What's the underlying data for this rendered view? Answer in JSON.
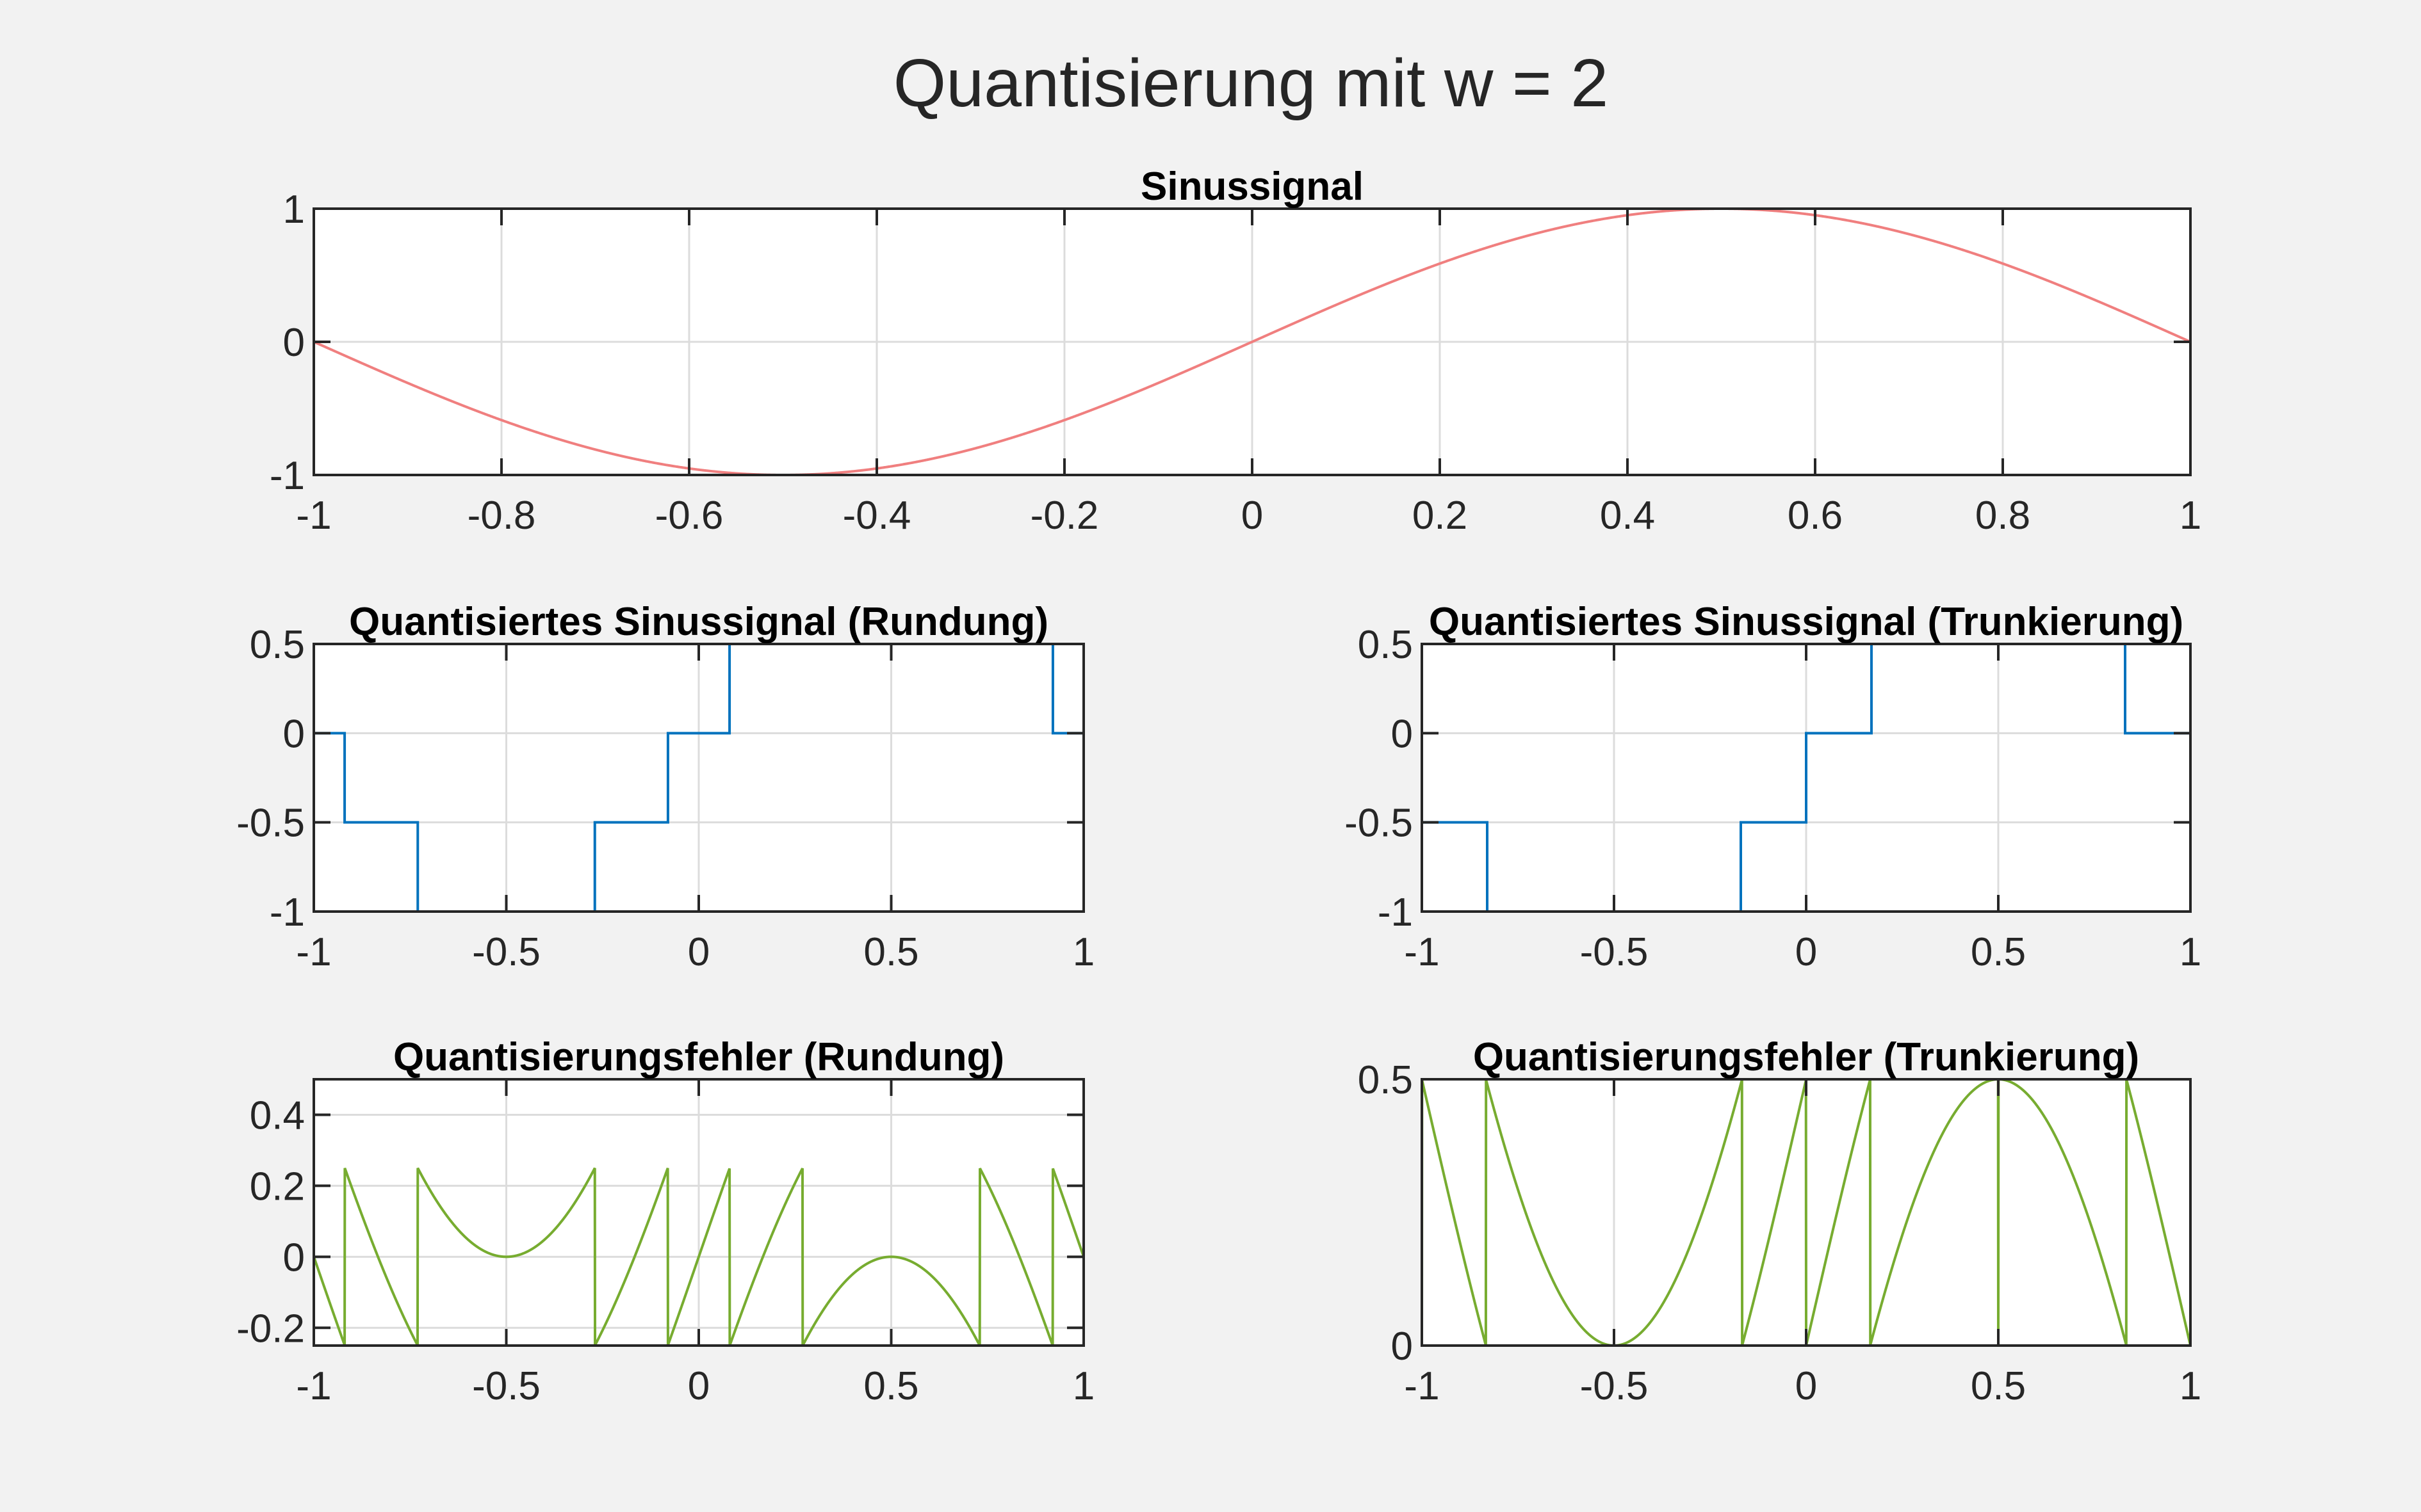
{
  "figure": {
    "title": "Quantisierung mit w = 2",
    "background": "#f2f2f2"
  },
  "chart_data": [
    {
      "id": "sinus",
      "type": "line",
      "title": "Sinussignal",
      "xlabel": "",
      "ylabel": "",
      "xlim": [
        -1,
        1
      ],
      "ylim": [
        -1,
        1
      ],
      "xticks": [
        -1,
        -0.8,
        -0.6,
        -0.4,
        -0.2,
        0,
        0.2,
        0.4,
        0.6,
        0.8,
        1
      ],
      "xticklabels": [
        "-1",
        "-0.8",
        "-0.6",
        "-0.4",
        "-0.2",
        "0",
        "0.2",
        "0.4",
        "0.6",
        "0.8",
        "1"
      ],
      "yticks": [
        -1,
        0,
        1
      ],
      "yticklabels": [
        "-1",
        "0",
        "1"
      ],
      "grid": true,
      "color": "#f07f7f",
      "series": [
        {
          "function": "sin(pi*x)",
          "x_range": [
            -1,
            1
          ]
        }
      ]
    },
    {
      "id": "quant_rund",
      "type": "line",
      "title": "Quantisiertes Sinussignal (Rundung)",
      "xlabel": "",
      "ylabel": "",
      "xlim": [
        -1,
        1
      ],
      "ylim": [
        -1,
        0.5
      ],
      "xticks": [
        -1,
        -0.5,
        0,
        0.5,
        1
      ],
      "xticklabels": [
        "-1",
        "-0.5",
        "0",
        "0.5",
        "1"
      ],
      "yticks": [
        -1,
        -0.5,
        0,
        0.5
      ],
      "yticklabels": [
        "-1",
        "-0.5",
        "0",
        "0.5"
      ],
      "grid": true,
      "color": "#0072bd",
      "series": [
        {
          "x": [
            -1,
            -0.92,
            -0.92,
            -0.73,
            -0.73,
            -0.27,
            -0.27,
            -0.08,
            -0.08,
            0.08,
            0.08,
            0.92,
            0.92,
            1
          ],
          "y": [
            0,
            0,
            -0.5,
            -0.5,
            -1,
            -1,
            -0.5,
            -0.5,
            0,
            0,
            0.5,
            0.5,
            0,
            0
          ]
        }
      ]
    },
    {
      "id": "quant_trunk",
      "type": "line",
      "title": "Quantisiertes Sinussignal (Trunkierung)",
      "xlabel": "",
      "ylabel": "",
      "xlim": [
        -1,
        1
      ],
      "ylim": [
        -1,
        0.5
      ],
      "xticks": [
        -1,
        -0.5,
        0,
        0.5,
        1
      ],
      "xticklabels": [
        "-1",
        "-0.5",
        "0",
        "0.5",
        "1"
      ],
      "yticks": [
        -1,
        -0.5,
        0,
        0.5
      ],
      "yticklabels": [
        "-1",
        "-0.5",
        "0",
        "0.5"
      ],
      "grid": true,
      "color": "#0072bd",
      "series": [
        {
          "x": [
            -1,
            -0.83,
            -0.83,
            -0.17,
            -0.17,
            0,
            0,
            0.17,
            0.17,
            0.83,
            0.83,
            1
          ],
          "y": [
            -0.5,
            -0.5,
            -1,
            -1,
            -0.5,
            -0.5,
            0,
            0,
            0.5,
            0.5,
            0,
            0
          ]
        }
      ]
    },
    {
      "id": "fehler_rund",
      "type": "line",
      "title": "Quantisierungsfehler (Rundung)",
      "xlabel": "",
      "ylabel": "",
      "xlim": [
        -1,
        1
      ],
      "ylim": [
        -0.25,
        0.5
      ],
      "xticks": [
        -1,
        -0.5,
        0,
        0.5,
        1
      ],
      "xticklabels": [
        "-1",
        "-0.5",
        "0",
        "0.5",
        "1"
      ],
      "yticks": [
        -0.2,
        0,
        0.2,
        0.4
      ],
      "yticklabels": [
        "-0.2",
        "0",
        "0.2",
        "0.4"
      ],
      "grid": true,
      "color": "#77ac30",
      "series": [
        {
          "function": "sin(pi*x) - round_0.5(sin(pi*x))",
          "x_range": [
            -1,
            1
          ]
        }
      ]
    },
    {
      "id": "fehler_trunk",
      "type": "line",
      "title": "Quantisierungsfehler (Trunkierung)",
      "xlabel": "",
      "ylabel": "",
      "xlim": [
        -1,
        1
      ],
      "ylim": [
        0,
        0.5
      ],
      "xticks": [
        -1,
        -0.5,
        0,
        0.5,
        1
      ],
      "xticklabels": [
        "-1",
        "-0.5",
        "0",
        "0.5",
        "1"
      ],
      "yticks": [
        0,
        0.5
      ],
      "yticklabels": [
        "0",
        "0.5"
      ],
      "grid": true,
      "color": "#77ac30",
      "series": [
        {
          "function": "sin(pi*x) - floor_0.5(sin(pi*x))",
          "x_range": [
            -1,
            1
          ]
        }
      ]
    }
  ]
}
